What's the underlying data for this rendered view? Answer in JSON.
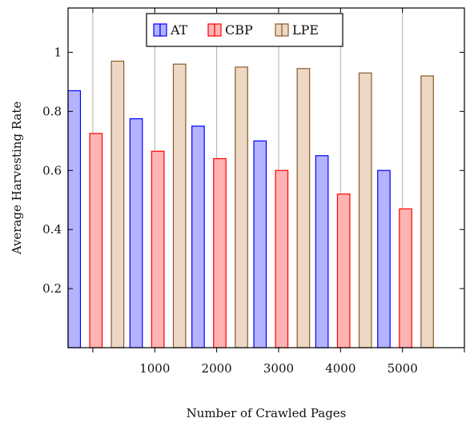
{
  "chart_data": {
    "type": "bar",
    "xlabel": "Number of Crawled Pages",
    "ylabel": "Average Harvesting Rate",
    "ylim": [
      0,
      1.15
    ],
    "xlim": [
      -400,
      6000
    ],
    "grid": "vertical",
    "legend_position": "top-center",
    "x_ticks": [
      0,
      1000,
      2000,
      3000,
      4000,
      5000,
      6000
    ],
    "x_tick_labels": [
      "",
      "1000",
      "2000",
      "3000",
      "4000",
      "5000",
      ""
    ],
    "y_ticks": [
      0.2,
      0.4,
      0.6,
      0.8,
      1.0
    ],
    "y_tick_labels": [
      "0.2",
      "0.4",
      "0.6",
      "0.8",
      "1"
    ],
    "x": [
      0,
      1000,
      2000,
      3000,
      4000,
      5000
    ],
    "series": [
      {
        "name": "AT",
        "color": "#0000ff",
        "fill": "#b3b3ff",
        "values": [
          0.87,
          0.775,
          0.75,
          0.7,
          0.65,
          0.6
        ]
      },
      {
        "name": "CBP",
        "color": "#ff0000",
        "fill": "#ffb3b3",
        "values": [
          0.725,
          0.665,
          0.64,
          0.6,
          0.52,
          0.47
        ]
      },
      {
        "name": "LPE",
        "color": "#8b5a2b",
        "fill": "#ecd8c4",
        "values": [
          0.97,
          0.96,
          0.95,
          0.945,
          0.93,
          0.92
        ]
      }
    ]
  }
}
